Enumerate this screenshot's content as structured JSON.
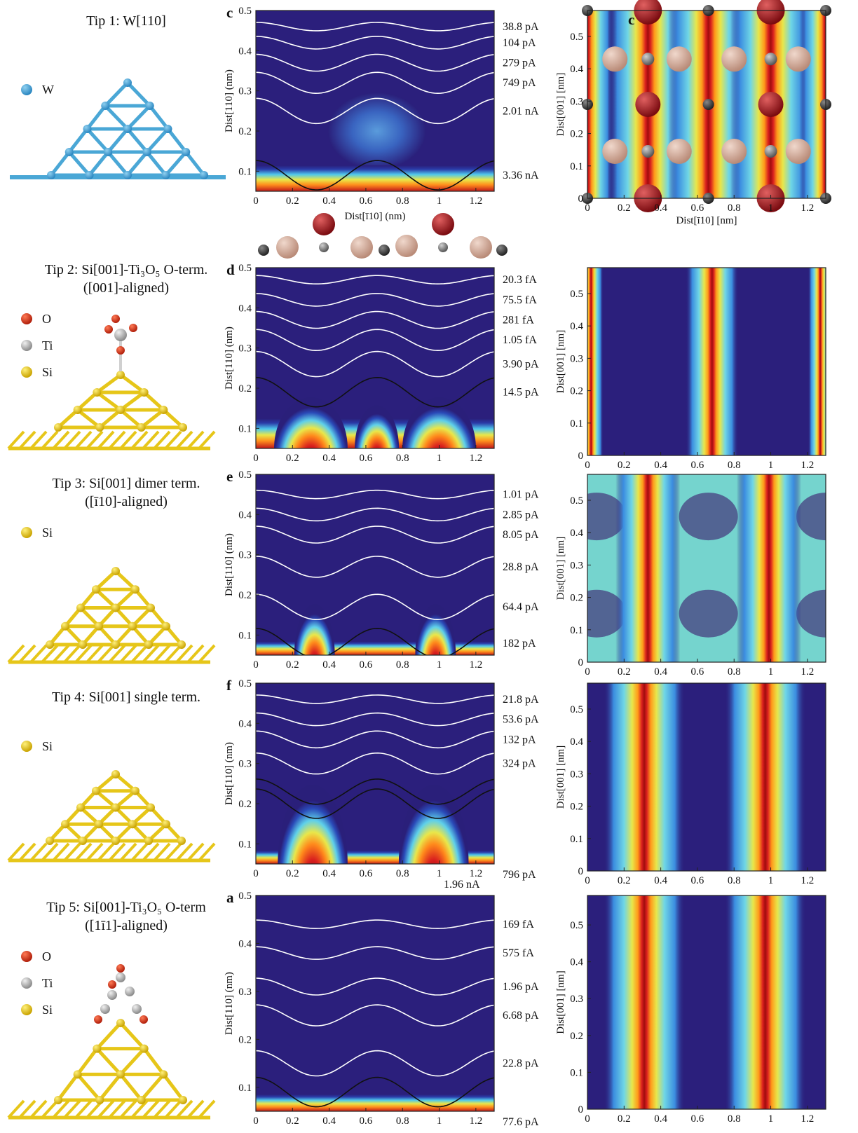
{
  "tips": [
    {
      "title": "Tip 1: W[110]",
      "subtitle": "",
      "legend": [
        {
          "label": "W",
          "color": "#4aa7d6"
        }
      ]
    },
    {
      "title": "Tip 2: Si[001]-Ti₃O₅ O-term.",
      "subtitle": "([001]-aligned)",
      "legend": [
        {
          "label": "O",
          "color": "#e03a1e"
        },
        {
          "label": "Ti",
          "color": "#c8c8c8"
        },
        {
          "label": "Si",
          "color": "#e6c619"
        }
      ]
    },
    {
      "title": "Tip 3: Si[001] dimer term.",
      "subtitle": "([ī10]-aligned)",
      "legend": [
        {
          "label": "Si",
          "color": "#e6c619"
        }
      ]
    },
    {
      "title": "Tip 4: Si[001] single term.",
      "subtitle": "",
      "legend": [
        {
          "label": "Si",
          "color": "#e6c619"
        }
      ]
    },
    {
      "title": "Tip 5: Si[001]-Ti₃O₅ O-term",
      "subtitle": "([1ī1]-aligned)",
      "legend": [
        {
          "label": "O",
          "color": "#e03a1e"
        },
        {
          "label": "Ti",
          "color": "#c8c8c8"
        },
        {
          "label": "Si",
          "color": "#e6c619"
        }
      ]
    }
  ],
  "chart_data": [
    {
      "type": "heatmap",
      "panel": "c",
      "xlabel": "Dist[ī10] (nm)",
      "ylabel": "Dist[110] (nm)",
      "xlim": [
        0,
        1.3
      ],
      "ylim": [
        0.05,
        0.5
      ],
      "x_ticks": [
        "0",
        "0.2",
        "0.4",
        "0.6",
        "0.8",
        "1",
        "1.2"
      ],
      "y_ticks": [
        "0.1",
        "0.2",
        "0.3",
        "0.4",
        "0.5"
      ],
      "contours": [
        {
          "label": "38.8 pA",
          "y": 0.46
        },
        {
          "label": "104 pA",
          "y": 0.42
        },
        {
          "label": "279 pA",
          "y": 0.37
        },
        {
          "label": "749 pA",
          "y": 0.32
        },
        {
          "label": "2.01 nA",
          "y": 0.25
        },
        {
          "label": "3.36 nA",
          "y": 0.09
        }
      ]
    },
    {
      "type": "heatmap",
      "panel": "d",
      "xlabel": "",
      "ylabel": "Dist[110] (nm)",
      "xlim": [
        0,
        1.3
      ],
      "ylim": [
        0.05,
        0.5
      ],
      "x_ticks": [
        "0",
        "0.2",
        "0.4",
        "0.6",
        "0.8",
        "1",
        "1.2"
      ],
      "y_ticks": [
        "0.1",
        "0.2",
        "0.3",
        "0.4",
        "0.5"
      ],
      "contours": [
        {
          "label": "20.3 fA",
          "y": 0.47
        },
        {
          "label": "75.5 fA",
          "y": 0.42
        },
        {
          "label": "281 fA",
          "y": 0.37
        },
        {
          "label": "1.05 fA",
          "y": 0.32
        },
        {
          "label": "3.90 pA",
          "y": 0.26
        },
        {
          "label": "14.5 pA",
          "y": 0.19
        }
      ]
    },
    {
      "type": "heatmap",
      "panel": "e",
      "xlabel": "",
      "ylabel": "Dist[110] (nm)",
      "xlim": [
        0,
        1.3
      ],
      "ylim": [
        0.05,
        0.5
      ],
      "x_ticks": [
        "0",
        "0.2",
        "0.4",
        "0.6",
        "0.8",
        "1",
        "1.2"
      ],
      "y_ticks": [
        "0.1",
        "0.2",
        "0.3",
        "0.4",
        "0.5"
      ],
      "contours": [
        {
          "label": "1.01 pA",
          "y": 0.45
        },
        {
          "label": "2.85 pA",
          "y": 0.4
        },
        {
          "label": "8.05 pA",
          "y": 0.35
        },
        {
          "label": "28.8 pA",
          "y": 0.27
        },
        {
          "label": "64.4 pA",
          "y": 0.17
        },
        {
          "label": "182 pA",
          "y": 0.08
        }
      ]
    },
    {
      "type": "heatmap",
      "panel": "f",
      "xlabel": "",
      "ylabel": "Dist[110] (nm)",
      "xlim": [
        0,
        1.3
      ],
      "ylim": [
        0.05,
        0.5
      ],
      "x_ticks": [
        "0",
        "0.2",
        "0.4",
        "0.6",
        "0.8",
        "1",
        "1.2"
      ],
      "y_ticks": [
        "0.1",
        "0.2",
        "0.3",
        "0.4",
        "0.5"
      ],
      "contours": [
        {
          "label": "21.8 pA",
          "y": 0.46
        },
        {
          "label": "53.6 pA",
          "y": 0.41
        },
        {
          "label": "132 pA",
          "y": 0.36
        },
        {
          "label": "324 pA",
          "y": 0.3
        },
        {
          "label": "796 pA",
          "y": 0.23
        },
        {
          "label": "1.96 nA",
          "y": 0.2
        }
      ]
    },
    {
      "type": "heatmap",
      "panel": "a",
      "xlabel": "",
      "ylabel": "Dist[110] (nm)",
      "xlim": [
        0,
        1.3
      ],
      "ylim": [
        0.05,
        0.5
      ],
      "x_ticks": [
        "0",
        "0.2",
        "0.4",
        "0.6",
        "0.8",
        "1",
        "1.2"
      ],
      "y_ticks": [
        "0.1",
        "0.2",
        "0.3",
        "0.4",
        "0.5"
      ],
      "contours": [
        {
          "label": "169 fA",
          "y": 0.44
        },
        {
          "label": "575 fA",
          "y": 0.38
        },
        {
          "label": "1.96 pA",
          "y": 0.31
        },
        {
          "label": "6.68 pA",
          "y": 0.25
        },
        {
          "label": "22.8 pA",
          "y": 0.15
        },
        {
          "label": "77.6 pA",
          "y": 0.09
        }
      ]
    },
    {
      "type": "heatmap",
      "panel": "c",
      "xlabel": "Dist[ī10] [nm]",
      "ylabel": "Dist[001] [nm]",
      "xlim": [
        0,
        1.3
      ],
      "ylim": [
        0,
        0.58
      ],
      "x_ticks": [
        "0",
        "0.2",
        "0.4",
        "0.6",
        "0.8",
        "1",
        "1.2"
      ],
      "y_ticks": [
        "0",
        "0.1",
        "0.2",
        "0.3",
        "0.4",
        "0.5"
      ]
    },
    {
      "type": "heatmap",
      "panel": "",
      "xlabel": "",
      "ylabel": "Dist[001] [nm]",
      "xlim": [
        0,
        1.3
      ],
      "ylim": [
        0,
        0.58
      ],
      "x_ticks": [
        "0",
        "0.2",
        "0.4",
        "0.6",
        "0.8",
        "1",
        "1.2"
      ],
      "y_ticks": [
        "0",
        "0.1",
        "0.2",
        "0.3",
        "0.4",
        "0.5"
      ]
    },
    {
      "type": "heatmap",
      "panel": "",
      "xlabel": "",
      "ylabel": "Dist[001] [nm]",
      "xlim": [
        0,
        1.3
      ],
      "ylim": [
        0,
        0.58
      ],
      "x_ticks": [
        "0",
        "0.2",
        "0.4",
        "0.6",
        "0.8",
        "1",
        "1.2"
      ],
      "y_ticks": [
        "0",
        "0.1",
        "0.2",
        "0.3",
        "0.4",
        "0.5"
      ]
    },
    {
      "type": "heatmap",
      "panel": "",
      "xlabel": "",
      "ylabel": "Dist[001] [nm]",
      "xlim": [
        0,
        1.3
      ],
      "ylim": [
        0,
        0.58
      ],
      "x_ticks": [
        "0",
        "0.2",
        "0.4",
        "0.6",
        "0.8",
        "1",
        "1.2"
      ],
      "y_ticks": [
        "0",
        "0.1",
        "0.2",
        "0.3",
        "0.4",
        "0.5"
      ]
    },
    {
      "type": "heatmap",
      "panel": "",
      "xlabel": "",
      "ylabel": "Dist[001] [nm]",
      "xlim": [
        0,
        1.3
      ],
      "ylim": [
        0,
        0.58
      ],
      "x_ticks": [
        "0",
        "0.2",
        "0.4",
        "0.6",
        "0.8",
        "1",
        "1.2"
      ],
      "y_ticks": [
        "0",
        "0.1",
        "0.2",
        "0.3",
        "0.4",
        "0.5"
      ]
    }
  ]
}
